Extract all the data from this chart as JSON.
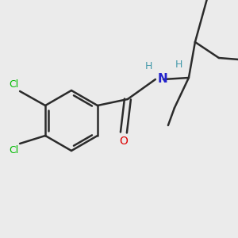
{
  "bg_color": "#ebebeb",
  "bond_color": "#2b2b2b",
  "bond_width": 1.8,
  "figsize": [
    3.0,
    3.0
  ],
  "dpi": 100,
  "atoms": {
    "Cl1": {
      "label": "Cl",
      "color": "#00bb00"
    },
    "Cl2": {
      "label": "Cl",
      "color": "#00bb00"
    },
    "O": {
      "label": "O",
      "color": "#dd0000"
    },
    "N": {
      "label": "N",
      "color": "#2222cc"
    },
    "H_N": {
      "label": "H",
      "color": "#4499aa"
    },
    "H_C": {
      "label": "H",
      "color": "#4499aa"
    }
  }
}
